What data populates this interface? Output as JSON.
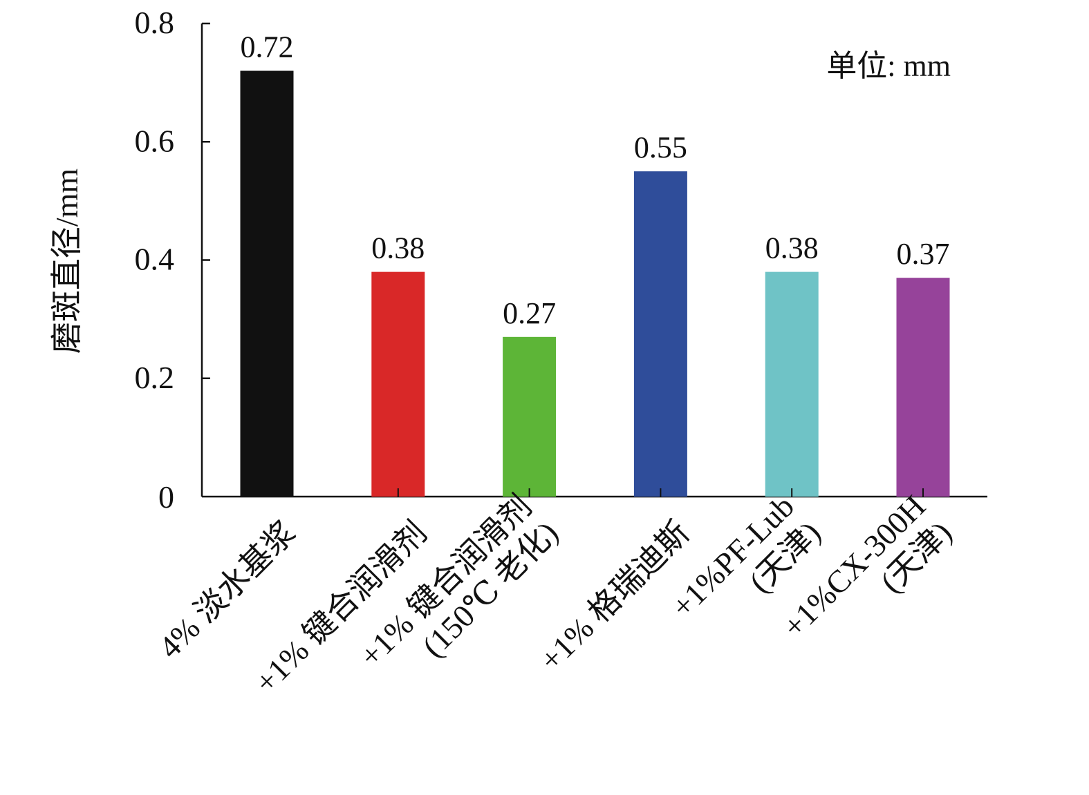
{
  "chart_data": {
    "type": "bar",
    "categories": [
      [
        "4% 淡水基浆"
      ],
      [
        "+1% 键合润滑剂"
      ],
      [
        "+1% 键合润滑剂",
        "(150℃ 老化)"
      ],
      [
        "+1% 格瑞迪斯"
      ],
      [
        "+1%PF-Lub",
        "(天津)"
      ],
      [
        "+1%CX-300H",
        "(天津)"
      ]
    ],
    "values": [
      0.72,
      0.38,
      0.27,
      0.55,
      0.38,
      0.37
    ],
    "value_labels": [
      "0.72",
      "0.38",
      "0.27",
      "0.55",
      "0.38",
      "0.37"
    ],
    "colors": [
      "#111111",
      "#d92828",
      "#5db537",
      "#2f4d9a",
      "#6fc3c6",
      "#96439a"
    ],
    "ylabel": "磨斑直径/mm",
    "yticks": [
      "0",
      "0.2",
      "0.4",
      "0.6",
      "0.8"
    ],
    "ylim": [
      0,
      0.8
    ],
    "unit_note": "单位: mm",
    "grid": false,
    "legend": "none"
  }
}
